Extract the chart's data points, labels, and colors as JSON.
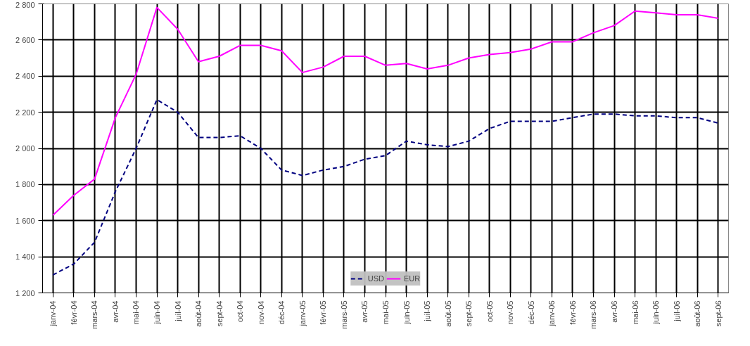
{
  "chart_data": {
    "type": "line",
    "categories": [
      "janv-04",
      "févr-04",
      "mars-04",
      "avr-04",
      "mai-04",
      "juin-04",
      "juil-04",
      "août-04",
      "sept-04",
      "oct-04",
      "nov-04",
      "déc-04",
      "janv-05",
      "févr-05",
      "mars-05",
      "avr-05",
      "mai-05",
      "juin-05",
      "juil-05",
      "août-05",
      "sept-05",
      "oct-05",
      "nov-05",
      "déc-05",
      "janv-06",
      "févr-06",
      "mars-06",
      "avr-06",
      "mai-06",
      "juin-06",
      "juil-06",
      "août-06",
      "sept-06"
    ],
    "series": [
      {
        "name": "USD",
        "color": "#000080",
        "line_style": "dashed",
        "values": [
          1300,
          1360,
          1480,
          1760,
          2000,
          2270,
          2200,
          2060,
          2060,
          2070,
          2000,
          1880,
          1850,
          1880,
          1900,
          1940,
          1960,
          2040,
          2020,
          2010,
          2040,
          2110,
          2150,
          2150,
          2150,
          2170,
          2190,
          2190,
          2180,
          2180,
          2170,
          2170,
          2140
        ]
      },
      {
        "name": "EUR",
        "color": "#ff00ff",
        "line_style": "solid",
        "values": [
          1630,
          1740,
          1830,
          2170,
          2410,
          2780,
          2660,
          2480,
          2510,
          2570,
          2570,
          2540,
          2420,
          2450,
          2510,
          2510,
          2460,
          2470,
          2440,
          2460,
          2500,
          2520,
          2530,
          2550,
          2590,
          2590,
          2640,
          2680,
          2760,
          2750,
          2740,
          2740,
          2720
        ]
      }
    ],
    "ylim": [
      1200,
      2800
    ],
    "yticks": [
      {
        "value": 1200,
        "label": "1 200"
      },
      {
        "value": 1400,
        "label": "1 400"
      },
      {
        "value": 1600,
        "label": "1 600"
      },
      {
        "value": 1800,
        "label": "1 800"
      },
      {
        "value": 2000,
        "label": "2 000"
      },
      {
        "value": 2200,
        "label": "2 200"
      },
      {
        "value": 2400,
        "label": "2 400"
      },
      {
        "value": 2600,
        "label": "2 600"
      },
      {
        "value": 2800,
        "label": "2 800"
      }
    ],
    "grid": true,
    "legend": "bottom",
    "marker": "none"
  }
}
